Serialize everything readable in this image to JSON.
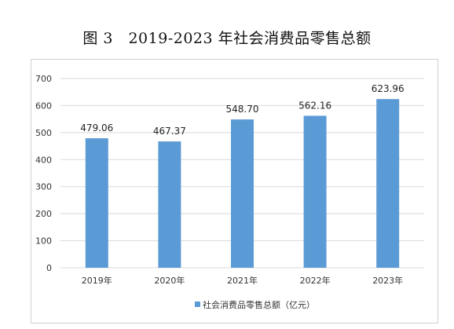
{
  "title": "图 3　2019-2023 年社会消费品零售总额",
  "chart_data": {
    "type": "bar",
    "title": "图 3　2019-2023 年社会消费品零售总额",
    "categories": [
      "2019年",
      "2020年",
      "2021年",
      "2022年",
      "2023年"
    ],
    "series": [
      {
        "name": "社会消费品零售总额（亿元）",
        "values": [
          479.06,
          467.37,
          548.7,
          562.16,
          623.96
        ],
        "color": "#5b9bd5"
      }
    ],
    "data_labels": [
      "479.06",
      "467.37",
      "548.70",
      "562.16",
      "623.96"
    ],
    "ylim": [
      0,
      700
    ],
    "yticks": [
      0,
      100,
      200,
      300,
      400,
      500,
      600,
      700
    ],
    "grid": true,
    "gridline_color": "#d9d9d9",
    "legend": "bottom",
    "xlabel": "",
    "ylabel": ""
  }
}
